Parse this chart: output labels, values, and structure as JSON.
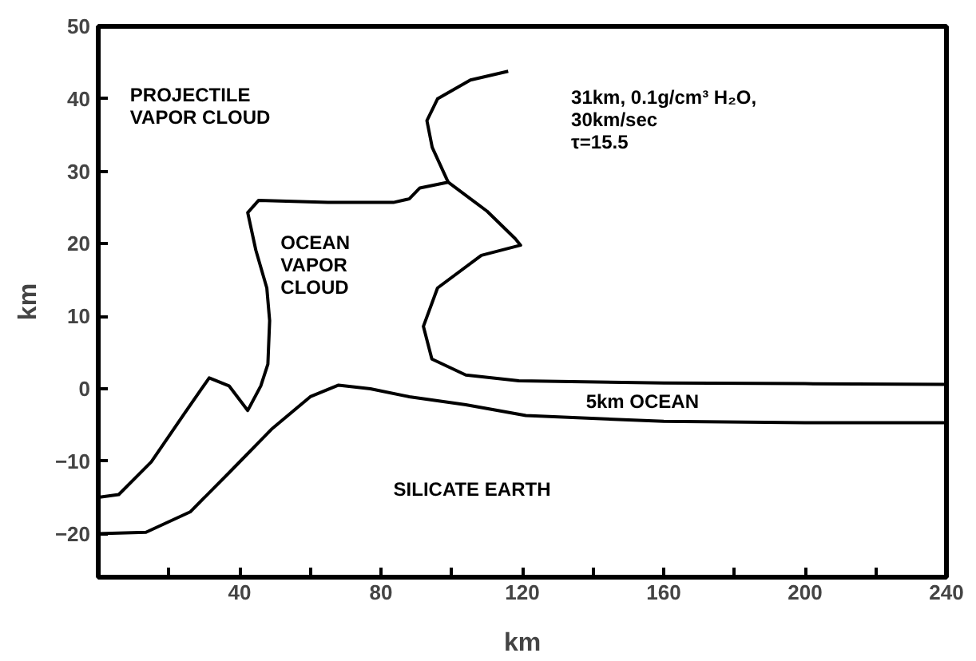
{
  "chart_data": {
    "type": "line",
    "xlabel": "km",
    "ylabel": "km",
    "xlim": [
      0,
      240
    ],
    "ylim": [
      -26,
      50
    ],
    "xticks": [
      {
        "value": 20,
        "label": null
      },
      40,
      {
        "value": 60,
        "label": null
      },
      80,
      {
        "value": 100,
        "label": null
      },
      120,
      {
        "value": 140,
        "label": null
      },
      160,
      {
        "value": 180,
        "label": null
      },
      200,
      {
        "value": 220,
        "label": null
      },
      240
    ],
    "yticks": [
      -20,
      -10,
      0,
      10,
      20,
      30,
      40,
      50
    ],
    "grid": false,
    "marker": "none",
    "line_style": "solid",
    "series": [
      {
        "color": "#000000",
        "x": [
          0,
          5.8,
          15,
          24.4,
          31.4,
          37,
          42.3,
          46,
          48,
          48.5,
          47.7,
          44.6,
          42.3,
          45.4,
          65,
          83.5,
          88,
          91,
          99,
          94.5,
          93,
          96,
          105.3,
          116
        ],
        "values": [
          -15,
          -14.6,
          -10.1,
          -3.4,
          1.5,
          0.4,
          -3,
          0.4,
          3.4,
          9.4,
          13.9,
          19.1,
          24.3,
          26,
          25.7,
          25.7,
          26.2,
          27.7,
          28.5,
          33.3,
          37,
          40,
          42.6,
          43.8
        ]
      },
      {
        "color": "#000000",
        "x": [
          99,
          110,
          118,
          119.5,
          108.4,
          96,
          92,
          94.4,
          104,
          119,
          160,
          200,
          240
        ],
        "values": [
          28.5,
          24.5,
          20.7,
          19.8,
          18.4,
          13.9,
          8.6,
          4.1,
          1.9,
          1.1,
          0.8,
          0.7,
          0.6
        ]
      },
      {
        "color": "#000000",
        "x": [
          0,
          13.5,
          26,
          37,
          49,
          60,
          68,
          77,
          88,
          104,
          121,
          160,
          200,
          240
        ],
        "values": [
          -20,
          -19.8,
          -17,
          -11.6,
          -5.6,
          -1.1,
          0.5,
          0,
          -1.1,
          -2.2,
          -3.7,
          -4.5,
          -4.7,
          -4.7
        ]
      }
    ],
    "annotations": [
      "PROJECTILE\nVAPOR CLOUD",
      "OCEAN\nVAPOR\nCLOUD",
      "31km, 0.1g/cm³ H₂O,\n30km/sec\nτ=15.5",
      {
        "text": "5km OCEAN",
        "x": 138,
        "y": -0.2
      },
      "SILICATE EARTH"
    ]
  }
}
